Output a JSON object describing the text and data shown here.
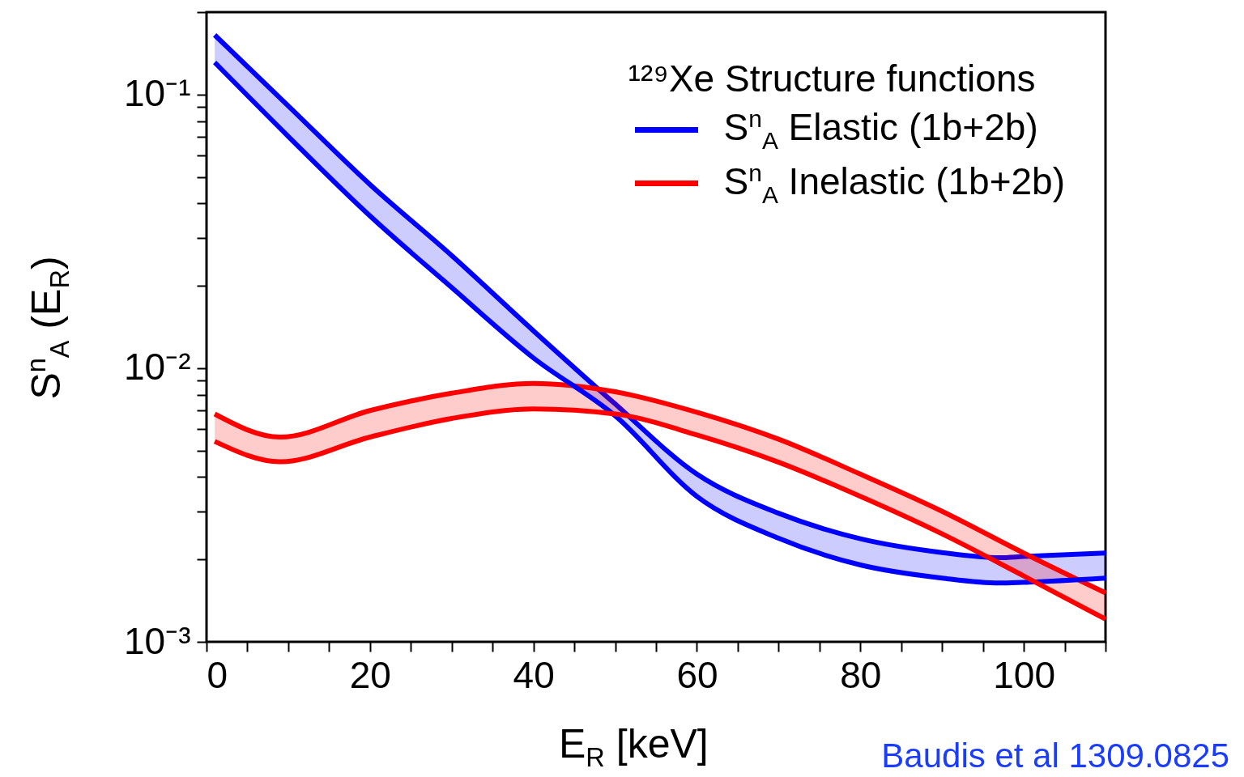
{
  "chart_data": {
    "type": "line",
    "xlabel": "E$_{R}$ [keV]",
    "ylabel": "S$^{n}$$_{A}$ (E$_{R}$)",
    "legend_title": "¹²⁹Xe Structure functions",
    "legend": "top right",
    "log": true,
    "xlim": [
      0,
      110
    ],
    "ylim": [
      0.001,
      0.2
    ],
    "xticks": [
      0,
      {
        "value": 5,
        "label": null
      },
      {
        "value": 10,
        "label": null
      },
      {
        "value": 15,
        "label": null
      },
      20,
      {
        "value": 25,
        "label": null
      },
      {
        "value": 30,
        "label": null
      },
      {
        "value": 35,
        "label": null
      },
      40,
      {
        "value": 45,
        "label": null
      },
      {
        "value": 50,
        "label": null
      },
      {
        "value": 55,
        "label": null
      },
      60,
      {
        "value": 65,
        "label": null
      },
      {
        "value": 70,
        "label": null
      },
      {
        "value": 75,
        "label": null
      },
      80,
      {
        "value": 85,
        "label": null
      },
      {
        "value": 90,
        "label": null
      },
      {
        "value": 95,
        "label": null
      },
      100,
      {
        "value": 105,
        "label": null
      },
      {
        "value": 110,
        "label": null
      }
    ],
    "yticks": [
      {
        "value": 0.001,
        "label": "10⁻³"
      },
      {
        "value": 0.002,
        "label": null
      },
      {
        "value": 0.003,
        "label": null
      },
      {
        "value": 0.004,
        "label": null
      },
      {
        "value": 0.005,
        "label": null
      },
      {
        "value": 0.006,
        "label": null
      },
      {
        "value": 0.007,
        "label": null
      },
      {
        "value": 0.008,
        "label": null
      },
      {
        "value": 0.009,
        "label": null
      },
      {
        "value": 0.01,
        "label": "10⁻²"
      },
      {
        "value": 0.02,
        "label": null
      },
      {
        "value": 0.03,
        "label": null
      },
      {
        "value": 0.04,
        "label": null
      },
      {
        "value": 0.05,
        "label": null
      },
      {
        "value": 0.06,
        "label": null
      },
      {
        "value": 0.07,
        "label": null
      },
      {
        "value": 0.08,
        "label": null
      },
      {
        "value": 0.09,
        "label": null
      },
      {
        "value": 0.1,
        "label": "10⁻¹"
      },
      {
        "value": 0.2,
        "label": null
      }
    ],
    "series": [
      {
        "name": "S$^{n}$$_{A}$ Elastic (1b+2b)",
        "color": "#0000ff",
        "x": [
          1,
          10,
          20,
          30,
          40,
          50,
          60,
          70,
          80,
          90,
          97,
          100,
          110
        ],
        "values": [
          0.165,
          0.0909,
          0.0469,
          0.0258,
          0.0137,
          0.0074,
          0.0041,
          0.00295,
          0.00238,
          0.00212,
          0.00203,
          0.00205,
          0.00211
        ],
        "lower": [
          0.131,
          0.0703,
          0.036,
          0.0197,
          0.0109,
          0.0067,
          0.0034,
          0.00239,
          0.00191,
          0.00171,
          0.00164,
          0.00165,
          0.00171
        ],
        "upper": [
          0.165,
          0.0909,
          0.0469,
          0.0258,
          0.0137,
          0.0074,
          0.0041,
          0.00295,
          0.00238,
          0.00212,
          0.00203,
          0.00205,
          0.00211
        ]
      },
      {
        "name": "S$^{n}$$_{A}$ Inelastic (1b+2b)",
        "color": "#ff0000",
        "x": [
          1,
          9,
          20,
          30,
          40,
          50,
          60,
          70,
          80,
          90,
          100,
          110
        ],
        "values": [
          0.0068,
          0.0056,
          0.007,
          0.0081,
          0.0088,
          0.0082,
          0.0069,
          0.0055,
          0.0041,
          0.003,
          0.00211,
          0.00151
        ],
        "lower": [
          0.0054,
          0.00455,
          0.0056,
          0.00655,
          0.0071,
          0.0068,
          0.0057,
          0.00453,
          0.0034,
          0.00248,
          0.00174,
          0.00121
        ],
        "upper": [
          0.0068,
          0.0056,
          0.007,
          0.0081,
          0.0088,
          0.0082,
          0.0069,
          0.0055,
          0.0041,
          0.003,
          0.00211,
          0.00151
        ]
      },
      {
        "color": "#0000ff",
        "x": [
          1,
          10,
          20,
          30,
          40,
          50,
          60,
          70,
          80,
          90,
          97,
          100,
          110
        ],
        "values": [
          0.131,
          0.0703,
          0.036,
          0.0197,
          0.0109,
          0.0067,
          0.0034,
          0.00239,
          0.00191,
          0.00171,
          0.00164,
          0.00165,
          0.00171
        ]
      },
      {
        "color": "#ff0000",
        "x": [
          1,
          9,
          20,
          30,
          40,
          50,
          60,
          70,
          80,
          90,
          100,
          110
        ],
        "values": [
          0.0054,
          0.00455,
          0.0056,
          0.00655,
          0.0071,
          0.0068,
          0.0057,
          0.00453,
          0.0034,
          0.00248,
          0.00174,
          0.00121
        ]
      }
    ],
    "annotations": [
      "Baudis et al 1309.0825"
    ]
  }
}
